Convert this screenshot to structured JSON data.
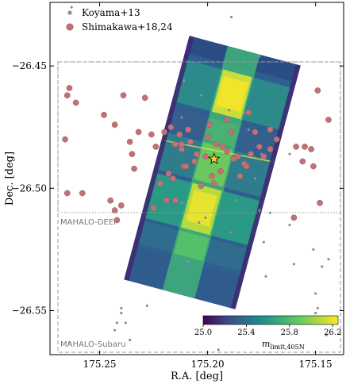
{
  "chart_data": {
    "type": "scatter",
    "xlabel": "R.A. [deg]",
    "ylabel": "Dec. [deg]",
    "xlim": [
      175.273,
      175.137
    ],
    "ylim": [
      -26.568,
      -26.424
    ],
    "x_ticks": [
      175.25,
      175.2,
      175.15
    ],
    "x_tick_labels": [
      "175.25",
      "175.20",
      "175.15"
    ],
    "y_ticks": [
      -26.45,
      -26.5,
      -26.55
    ],
    "y_tick_labels": [
      "−26.45",
      "−26.50",
      "−26.55"
    ],
    "grid": false,
    "legend": {
      "placement": "top-left",
      "entries": [
        {
          "label": "Koyama+13",
          "color": "#8c8c9a",
          "marker": "small-dot"
        },
        {
          "label": "Shimakawa+18,24",
          "color": "#c07276",
          "marker": "large-dot"
        }
      ]
    },
    "colorbar": {
      "label": "m",
      "label_sub": "limit,405N",
      "range": [
        25.0,
        26.25
      ],
      "ticks": [
        25.0,
        25.4,
        25.8,
        26.2
      ],
      "tick_labels": [
        "25.0",
        "25.4",
        "25.8",
        "26.2"
      ],
      "colormap": "viridis"
    },
    "regions": [
      {
        "label": "MAHALO-DEEP",
        "ra_range": [
          175.27,
          175.14
        ],
        "dec_range": [
          -26.515,
          -26.441
        ],
        "style": "dotted"
      },
      {
        "label": "MAHALO-Subaru",
        "ra_range": [
          175.27,
          175.14
        ],
        "dec_range": [
          -26.57,
          -26.441
        ],
        "style": "dashed"
      }
    ],
    "image_footprint": {
      "corners_radec": [
        [
          175.223,
          -26.442
        ],
        [
          175.183,
          -26.431
        ],
        [
          175.159,
          -26.532
        ],
        [
          175.199,
          -26.541
        ]
      ],
      "colorbar_range": [
        25.0,
        26.25
      ]
    },
    "center_marker": {
      "ra": 175.197,
      "dec": -26.488,
      "symbol": "star",
      "color": "#f2d024"
    },
    "series": [
      {
        "name": "Koyama+13",
        "color": "#8c8c9a",
        "points": [
          [
            175.263,
            -26.426
          ],
          [
            175.189,
            -26.43
          ],
          [
            175.176,
            -26.446
          ],
          [
            175.211,
            -26.456
          ],
          [
            175.19,
            -26.468
          ],
          [
            175.183,
            -26.469
          ],
          [
            175.212,
            -26.471
          ],
          [
            175.203,
            -26.462
          ],
          [
            175.181,
            -26.476
          ],
          [
            175.162,
            -26.486
          ],
          [
            175.178,
            -26.496
          ],
          [
            175.187,
            -26.505
          ],
          [
            175.176,
            -26.509
          ],
          [
            175.204,
            -26.514
          ],
          [
            175.162,
            -26.515
          ],
          [
            175.171,
            -26.51
          ],
          [
            175.173,
            -26.536
          ],
          [
            175.16,
            -26.531
          ],
          [
            175.174,
            -26.522
          ],
          [
            175.201,
            -26.512
          ],
          [
            175.209,
            -26.53
          ],
          [
            175.151,
            -26.525
          ],
          [
            175.144,
            -26.529
          ],
          [
            175.147,
            -26.532
          ],
          [
            175.15,
            -26.543
          ],
          [
            175.149,
            -26.549
          ],
          [
            175.15,
            -26.551
          ],
          [
            175.24,
            -26.549
          ],
          [
            175.24,
            -26.551
          ],
          [
            175.242,
            -26.555
          ],
          [
            175.228,
            -26.548
          ],
          [
            175.236,
            -26.562
          ],
          [
            175.243,
            -26.558
          ],
          [
            175.238,
            -26.555
          ],
          [
            175.264,
            -26.563
          ],
          [
            175.195,
            -26.566
          ],
          [
            175.145,
            -26.56
          ],
          [
            175.189,
            -26.518
          ],
          [
            175.212,
            -26.506
          ],
          [
            175.175,
            -26.486
          ]
        ]
      },
      {
        "name": "Shimakawa+18,24",
        "color": "#c07276",
        "points": [
          [
            175.264,
            -26.459
          ],
          [
            175.265,
            -26.462
          ],
          [
            175.261,
            -26.465
          ],
          [
            175.248,
            -26.47
          ],
          [
            175.239,
            -26.462
          ],
          [
            175.229,
            -26.463
          ],
          [
            175.243,
            -26.474
          ],
          [
            175.232,
            -26.477
          ],
          [
            175.226,
            -26.478
          ],
          [
            175.22,
            -26.477
          ],
          [
            175.217,
            -26.475
          ],
          [
            175.213,
            -26.478
          ],
          [
            175.199,
            -26.474
          ],
          [
            175.215,
            -26.482
          ],
          [
            175.212,
            -26.484
          ],
          [
            175.211,
            -26.491
          ],
          [
            175.224,
            -26.483
          ],
          [
            175.218,
            -26.494
          ],
          [
            175.222,
            -26.498
          ],
          [
            175.21,
            -26.491
          ],
          [
            175.205,
            -26.486
          ],
          [
            175.201,
            -26.487
          ],
          [
            175.2,
            -26.479
          ],
          [
            175.196,
            -26.482
          ],
          [
            175.193,
            -26.483
          ],
          [
            175.191,
            -26.485
          ],
          [
            175.188,
            -26.488
          ],
          [
            175.186,
            -26.487
          ],
          [
            175.183,
            -26.49
          ],
          [
            175.18,
            -26.486
          ],
          [
            175.176,
            -26.483
          ],
          [
            175.171,
            -26.484
          ],
          [
            175.168,
            -26.48
          ],
          [
            175.159,
            -26.483
          ],
          [
            175.155,
            -26.483
          ],
          [
            175.152,
            -26.484
          ],
          [
            175.156,
            -26.489
          ],
          [
            175.151,
            -26.491
          ],
          [
            175.144,
            -26.472
          ],
          [
            175.149,
            -26.46
          ],
          [
            175.148,
            -26.506
          ],
          [
            175.197,
            -26.498
          ],
          [
            175.206,
            -26.489
          ],
          [
            175.212,
            -26.482
          ],
          [
            175.209,
            -26.476
          ],
          [
            175.189,
            -26.477
          ],
          [
            175.182,
            -26.491
          ],
          [
            175.185,
            -26.495
          ],
          [
            175.203,
            -26.499
          ],
          [
            175.198,
            -26.495
          ],
          [
            175.194,
            -26.493
          ],
          [
            175.234,
            -26.492
          ],
          [
            175.235,
            -26.486
          ],
          [
            175.236,
            -26.481
          ],
          [
            175.24,
            -26.507
          ],
          [
            175.243,
            -26.509
          ],
          [
            175.242,
            -26.513
          ],
          [
            175.245,
            -26.505
          ],
          [
            175.258,
            -26.502
          ],
          [
            175.265,
            -26.502
          ],
          [
            175.266,
            -26.48
          ],
          [
            175.216,
            -26.496
          ],
          [
            175.215,
            -26.505
          ],
          [
            175.225,
            -26.508
          ],
          [
            175.219,
            -26.505
          ],
          [
            175.208,
            -26.481
          ],
          [
            175.174,
            -26.487
          ],
          [
            175.178,
            -26.477
          ],
          [
            175.16,
            -26.512
          ],
          [
            175.191,
            -26.472
          ],
          [
            175.181,
            -26.469
          ],
          [
            175.171,
            -26.476
          ]
        ]
      }
    ]
  }
}
